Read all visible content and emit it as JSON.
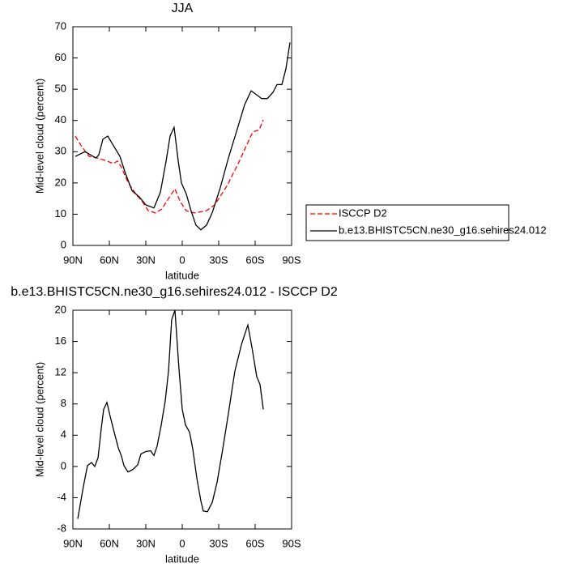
{
  "chart_data": [
    {
      "type": "line",
      "title": "JJA",
      "xlabel": "latitude",
      "ylabel": "Mid-level cloud (percent)",
      "xlim": [
        90,
        -90
      ],
      "xticks": [
        {
          "value": 90,
          "label": "90N"
        },
        {
          "value": 60,
          "label": "60N"
        },
        {
          "value": 30,
          "label": "30N"
        },
        0,
        {
          "value": -30,
          "label": "30S"
        },
        {
          "value": -60,
          "label": "60S"
        },
        {
          "value": -90,
          "label": "90S"
        }
      ],
      "ylim": [
        0,
        70
      ],
      "yticks": [
        0,
        10,
        20,
        30,
        40,
        50,
        60,
        70
      ],
      "legend": "right",
      "series": [
        {
          "name": "ISCCP D2",
          "color": "#ff0000",
          "dash": true,
          "x": [
            88,
            83.3,
            76.7,
            70,
            63.3,
            56.7,
            53.3,
            50,
            44.7,
            38,
            33.3,
            28,
            22,
            16.7,
            11.3,
            6,
            2,
            -3.3,
            -10,
            -20,
            -26.7,
            -36.7,
            -46.7,
            -53.3,
            -58,
            -63.3,
            -66.7
          ],
          "values": [
            35,
            32,
            28.5,
            28,
            27.2,
            26.2,
            27,
            25,
            20.2,
            16.3,
            14.3,
            11.1,
            10.4,
            11.7,
            15,
            18.1,
            14.3,
            11.1,
            10.4,
            11.1,
            13,
            19,
            26.7,
            32.4,
            36.3,
            37,
            40.2
          ]
        },
        {
          "name": "b.e13.BHISTC5CN.ne30_g16.sehires24.012",
          "color": "#000000",
          "dash": false,
          "x": [
            88,
            80,
            74.7,
            71,
            68.7,
            65.3,
            61.3,
            56.7,
            51.3,
            46.7,
            41.3,
            35.3,
            30,
            23.3,
            18,
            13.3,
            10,
            6.7,
            3.3,
            0.7,
            -3.3,
            -7.3,
            -11.3,
            -15.3,
            -20,
            -24.7,
            -31.3,
            -38,
            -44.7,
            -51.3,
            -56.7,
            -62,
            -65.3,
            -70,
            -74.7,
            -78,
            -82,
            -85.3,
            -88.7
          ],
          "values": [
            28.5,
            30,
            28.8,
            28,
            29,
            34,
            35,
            32,
            28.5,
            23,
            17.5,
            15.5,
            13,
            12,
            17,
            27,
            35,
            37.8,
            27,
            20,
            16.5,
            11,
            6.5,
            5,
            6.5,
            10.5,
            18.5,
            28,
            36.5,
            45,
            49.5,
            48,
            47,
            47,
            49,
            51.5,
            51.5,
            56.5,
            65
          ]
        }
      ]
    },
    {
      "type": "line",
      "title": "b.e13.BHISTC5CN.ne30_g16.sehires24.012 - ISCCP D2",
      "xlabel": "latitude",
      "ylabel": "Mid-level cloud (percent)",
      "xlim": [
        90,
        -90
      ],
      "xticks": [
        {
          "value": 90,
          "label": "90N"
        },
        {
          "value": 60,
          "label": "60N"
        },
        {
          "value": 30,
          "label": "30N"
        },
        0,
        {
          "value": -30,
          "label": "30S"
        },
        {
          "value": -60,
          "label": "60S"
        },
        {
          "value": -90,
          "label": "90S"
        }
      ],
      "ylim": [
        -8,
        20
      ],
      "yticks": [
        -8,
        -4,
        0,
        4,
        8,
        12,
        16,
        20
      ],
      "series": [
        {
          "color": "#000000",
          "dash": false,
          "x": [
            86,
            81.3,
            78,
            74.7,
            72,
            69.3,
            66.7,
            64.7,
            62,
            59.3,
            56.7,
            52.7,
            50,
            48,
            44.7,
            40.7,
            36.7,
            34,
            30,
            26,
            23.3,
            20.7,
            17.3,
            14,
            11.3,
            8.7,
            6,
            2.7,
            0,
            -2.7,
            -6,
            -8.7,
            -12,
            -15.3,
            -17.3,
            -20.7,
            -24.7,
            -28.7,
            -33.3,
            -38,
            -43.3,
            -48.7,
            -52.7,
            -54,
            -57.3,
            -61.3,
            -64,
            -66.7
          ],
          "values": [
            -6.7,
            -2.5,
            0.1,
            0.5,
            0,
            1.1,
            4.8,
            7.3,
            8.2,
            6.4,
            4.8,
            2.4,
            1.3,
            0.1,
            -0.7,
            -0.4,
            0.2,
            1.6,
            1.9,
            2,
            1.4,
            2.6,
            5.3,
            8.4,
            12.2,
            18.8,
            20,
            12.5,
            7.3,
            5.3,
            4.4,
            2.2,
            -1.5,
            -4.4,
            -5.7,
            -5.8,
            -4.6,
            -2,
            2.2,
            6.8,
            12.2,
            15.6,
            17.5,
            18.1,
            15.3,
            11.5,
            10.5,
            7.3
          ]
        }
      ]
    }
  ]
}
